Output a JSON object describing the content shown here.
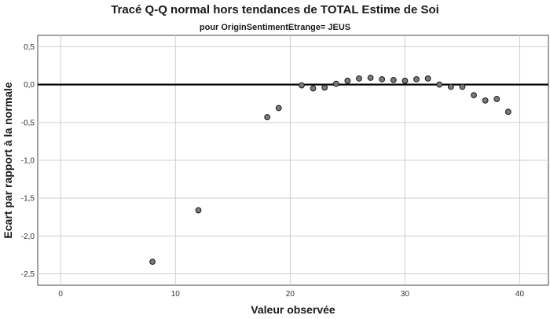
{
  "chart_data": {
    "type": "scatter",
    "title": "Tracé Q-Q normal hors tendances de TOTAL Estime de Soi",
    "subtitle": "pour OriginSentimentEtrange= JEUS",
    "xlabel": "Valeur observée",
    "ylabel": "Ecart par rapport à la normale",
    "xlim": [
      -2,
      42.5
    ],
    "ylim": [
      -2.65,
      0.65
    ],
    "x_ticks": [
      0,
      10,
      20,
      30,
      40
    ],
    "y_ticks": [
      0.5,
      0.0,
      -0.5,
      -1.0,
      -1.5,
      -2.0,
      -2.5
    ],
    "x_tick_labels": [
      "0",
      "10",
      "20",
      "30",
      "40"
    ],
    "y_tick_labels": [
      "0,5",
      "0,0",
      "-0,5",
      "-1,0",
      "-1,5",
      "-2,0",
      "-2,5"
    ],
    "reference_line_y": 0,
    "grid": true,
    "point_color": "#7a7a7a",
    "point_stroke": "#1a1a1a",
    "points": [
      {
        "x": 8,
        "y": -2.34
      },
      {
        "x": 12,
        "y": -1.66
      },
      {
        "x": 18,
        "y": -0.43
      },
      {
        "x": 19,
        "y": -0.31
      },
      {
        "x": 21,
        "y": -0.01
      },
      {
        "x": 22,
        "y": -0.05
      },
      {
        "x": 23,
        "y": -0.04
      },
      {
        "x": 24,
        "y": 0.01
      },
      {
        "x": 25,
        "y": 0.05
      },
      {
        "x": 26,
        "y": 0.08
      },
      {
        "x": 27,
        "y": 0.09
      },
      {
        "x": 28,
        "y": 0.07
      },
      {
        "x": 29,
        "y": 0.06
      },
      {
        "x": 30,
        "y": 0.05
      },
      {
        "x": 31,
        "y": 0.07
      },
      {
        "x": 32,
        "y": 0.08
      },
      {
        "x": 33,
        "y": 0.0
      },
      {
        "x": 34,
        "y": -0.03
      },
      {
        "x": 35,
        "y": -0.03
      },
      {
        "x": 36,
        "y": -0.14
      },
      {
        "x": 37,
        "y": -0.21
      },
      {
        "x": 38,
        "y": -0.19
      },
      {
        "x": 39,
        "y": -0.36
      }
    ]
  }
}
